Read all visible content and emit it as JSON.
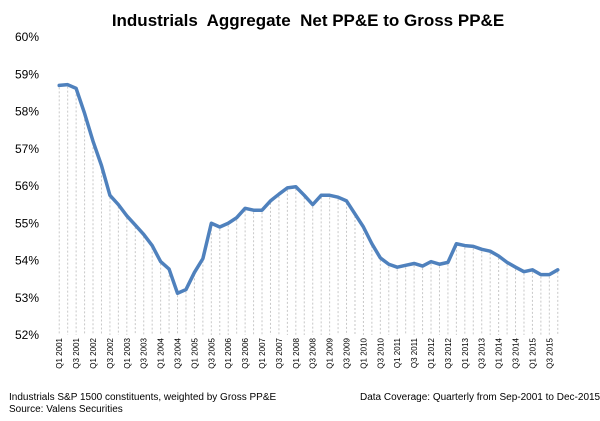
{
  "chart_data": {
    "type": "line",
    "title": "Industrials  Aggregate  Net PP&E to Gross PP&E",
    "xlabel": "",
    "ylabel": "",
    "ylim": [
      52,
      60
    ],
    "ytick_labels": [
      "52%",
      "53%",
      "54%",
      "55%",
      "56%",
      "57%",
      "58%",
      "59%",
      "60%"
    ],
    "x_tick_labels": [
      "Q1 2001",
      "Q3 2001",
      "Q1 2002",
      "Q3 2002",
      "Q1 2003",
      "Q3 2003",
      "Q1 2004",
      "Q3 2004",
      "Q1 2005",
      "Q3 2005",
      "Q1 2006",
      "Q3 2006",
      "Q1 2007",
      "Q3 2007",
      "Q1 2008",
      "Q3 2008",
      "Q1 2009",
      "Q3 2009",
      "Q1 2010",
      "Q3 2010",
      "Q1 2011",
      "Q3 2011",
      "Q1 2012",
      "Q3 2012",
      "Q1 2013",
      "Q3 2013",
      "Q1 2014",
      "Q3 2014",
      "Q1 2015",
      "Q3 2015"
    ],
    "grid": "vertical dashed",
    "legend": "none",
    "line_color": "#4f81bd",
    "series": [
      {
        "x": [
          "Q1 2001",
          "Q2 2001",
          "Q3 2001",
          "Q4 2001",
          "Q1 2002",
          "Q2 2002",
          "Q3 2002",
          "Q4 2002",
          "Q1 2003",
          "Q2 2003",
          "Q3 2003",
          "Q4 2003",
          "Q1 2004",
          "Q2 2004",
          "Q3 2004",
          "Q4 2004",
          "Q1 2005",
          "Q2 2005",
          "Q3 2005",
          "Q4 2005",
          "Q1 2006",
          "Q2 2006",
          "Q3 2006",
          "Q4 2006",
          "Q1 2007",
          "Q2 2007",
          "Q3 2007",
          "Q4 2007",
          "Q1 2008",
          "Q2 2008",
          "Q3 2008",
          "Q4 2008",
          "Q1 2009",
          "Q2 2009",
          "Q3 2009",
          "Q4 2009",
          "Q1 2010",
          "Q2 2010",
          "Q3 2010",
          "Q4 2010",
          "Q1 2011",
          "Q2 2011",
          "Q3 2011",
          "Q4 2011",
          "Q1 2012",
          "Q2 2012",
          "Q3 2012",
          "Q4 2012",
          "Q1 2013",
          "Q2 2013",
          "Q3 2013",
          "Q4 2013",
          "Q1 2014",
          "Q2 2014",
          "Q3 2014",
          "Q4 2014",
          "Q1 2015",
          "Q2 2015",
          "Q3 2015",
          "Q4 2015"
        ],
        "values": [
          58.7,
          58.72,
          58.62,
          57.95,
          57.2,
          56.55,
          55.75,
          55.5,
          55.2,
          54.95,
          54.7,
          54.4,
          53.97,
          53.77,
          53.12,
          53.22,
          53.68,
          54.05,
          55.0,
          54.9,
          55.0,
          55.15,
          55.4,
          55.35,
          55.35,
          55.6,
          55.78,
          55.95,
          55.98,
          55.75,
          55.5,
          55.75,
          55.75,
          55.7,
          55.6,
          55.25,
          54.9,
          54.45,
          54.07,
          53.9,
          53.82,
          53.87,
          53.92,
          53.85,
          53.97,
          53.9,
          53.95,
          54.45,
          54.4,
          54.38,
          54.3,
          54.25,
          54.12,
          53.95,
          53.82,
          53.7,
          53.75,
          53.62,
          53.62,
          53.75
        ]
      }
    ]
  },
  "footnotes": {
    "left": "Industrials S&P 1500 constituents, weighted by Gross PP&E",
    "source": "Source: Valens Securities",
    "right": "Data Coverage: Quarterly from Sep-2001 to Dec-2015"
  }
}
